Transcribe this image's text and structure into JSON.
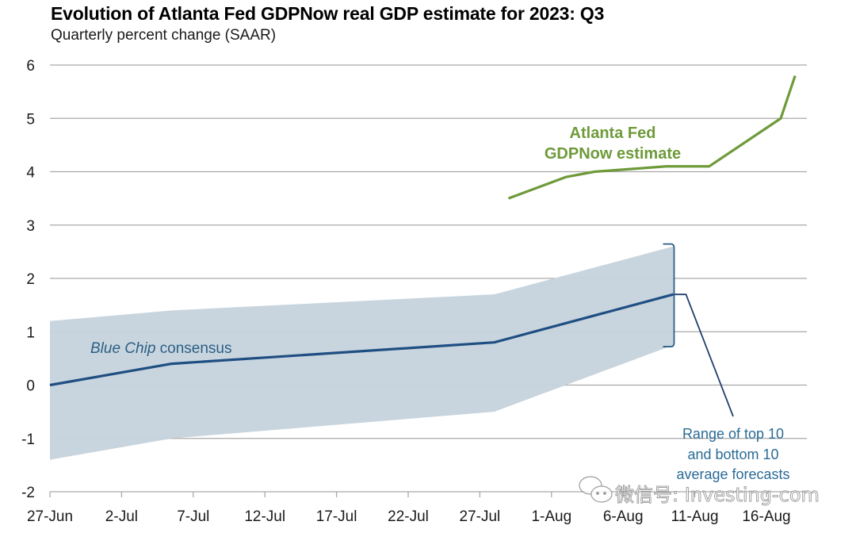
{
  "chart_data": {
    "type": "line",
    "title": "Evolution of Atlanta Fed GDPNow real GDP estimate for 2023: Q3",
    "subtitle": "Quarterly percent change (SAAR)",
    "xlabel": "",
    "ylabel": "Quarterly percent change (SAAR)",
    "ylim": [
      -2,
      6
    ],
    "yticks": [
      6,
      5,
      4,
      3,
      2,
      1,
      0,
      -1,
      -2
    ],
    "ytick_labels": [
      "6",
      "5",
      "4",
      "3",
      "2",
      "1",
      "0",
      "-1",
      "-2"
    ],
    "x_start_label": "27-Jun",
    "x_range_days": [
      0,
      53
    ],
    "xticks_days": [
      0,
      5,
      10,
      15,
      20,
      25,
      30,
      35,
      40,
      45,
      50
    ],
    "xtick_labels": [
      "27-Jun",
      "2-Jul",
      "7-Jul",
      "12-Jul",
      "17-Jul",
      "22-Jul",
      "27-Jul",
      "1-Aug",
      "6-Aug",
      "11-Aug",
      "16-Aug"
    ],
    "grid": true,
    "series": [
      {
        "name": "Atlanta Fed GDPNow estimate",
        "color": "#6e9a3a",
        "x_days": [
          32,
          36,
          38,
          43,
          46,
          51,
          52
        ],
        "x_labels": [
          "29-Jul",
          "2-Aug",
          "4-Aug",
          "9-Aug",
          "12-Aug",
          "17-Aug",
          "18-Aug"
        ],
        "values": [
          3.5,
          3.9,
          4.0,
          4.1,
          4.1,
          5.0,
          5.8
        ]
      },
      {
        "name": "Blue Chip consensus",
        "color": "#1f4e82",
        "x_days": [
          0,
          8.5,
          31,
          43.5
        ],
        "x_labels": [
          "27-Jun",
          "5-Jul",
          "28-Jul",
          "9-Aug"
        ],
        "values": [
          0.0,
          0.4,
          0.8,
          1.7
        ]
      }
    ],
    "band": {
      "name": "Range of top 10 and bottom 10 average forecasts",
      "color": "#c5d3dc",
      "x_days": [
        0,
        8.5,
        31,
        43.5
      ],
      "upper": [
        1.2,
        1.4,
        1.7,
        2.6
      ],
      "lower": [
        -1.4,
        -1.0,
        -0.5,
        0.75
      ]
    },
    "annotations": {
      "gdpnow_line1": "Atlanta Fed",
      "gdpnow_line2": "GDPNow estimate",
      "bluechip_italic": "Blue Chip",
      "bluechip_rest": " consensus",
      "range_line1": "Range of top 10",
      "range_line2": "and bottom 10",
      "range_line3": "average forecasts"
    },
    "legend": "none (inline annotations)"
  },
  "watermark": {
    "text": "微信号: Investing-com",
    "icon": "wechat-icon"
  }
}
